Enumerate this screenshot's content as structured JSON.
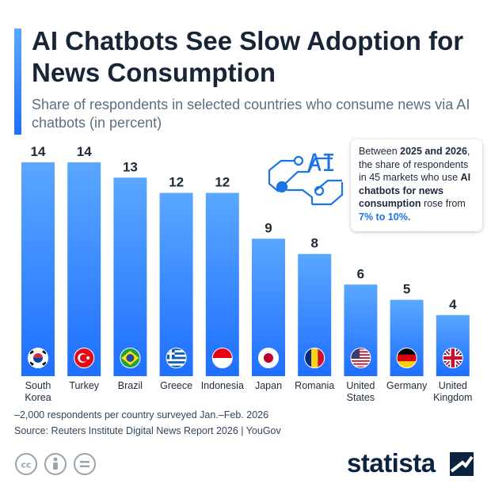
{
  "title": "AI Chatbots See Slow Adoption for News Consumption",
  "subtitle": "Share of respondents in selected countries who consume news via AI chatbots (in percent)",
  "callout": {
    "t1": "Between ",
    "b1": "2025 and 2026",
    "t2": ", the share of respondents in 45 markets who use ",
    "b2": "AI chatbots for news consumption",
    "t3": " rose from ",
    "h1": "7% to 10%."
  },
  "illustration_text": "AI",
  "colors": {
    "bar_top": "#5aa7ff",
    "bar_bottom": "#1e6fff",
    "accent": "#1a73e8"
  },
  "chart_data": {
    "type": "bar",
    "categories": [
      "South Korea",
      "Turkey",
      "Brazil",
      "Greece",
      "Indonesia",
      "Japan",
      "Romania",
      "United States",
      "Germany",
      "United Kingdom"
    ],
    "category_lines": [
      [
        "South",
        "Korea"
      ],
      [
        "Turkey"
      ],
      [
        "Brazil"
      ],
      [
        "Greece"
      ],
      [
        "Indonesia"
      ],
      [
        "Japan"
      ],
      [
        "Romania"
      ],
      [
        "United",
        "States"
      ],
      [
        "Germany"
      ],
      [
        "United",
        "Kingdom"
      ]
    ],
    "flags": [
      "south-korea-flag-icon",
      "turkey-flag-icon",
      "brazil-flag-icon",
      "greece-flag-icon",
      "indonesia-flag-icon",
      "japan-flag-icon",
      "romania-flag-icon",
      "united-states-flag-icon",
      "germany-flag-icon",
      "united-kingdom-flag-icon"
    ],
    "values": [
      14,
      14,
      13,
      12,
      12,
      9,
      8,
      6,
      5,
      4
    ],
    "ylim": [
      0,
      14
    ],
    "grid": false,
    "legend": "none"
  },
  "notes": {
    "survey": "–2,000 respondents per country surveyed Jan.–Feb. 2026",
    "source": "Source: Reuters Institute Digital News Report 2026 | YouGov"
  },
  "brand": {
    "name": "statista",
    "color": "#0a2340"
  }
}
